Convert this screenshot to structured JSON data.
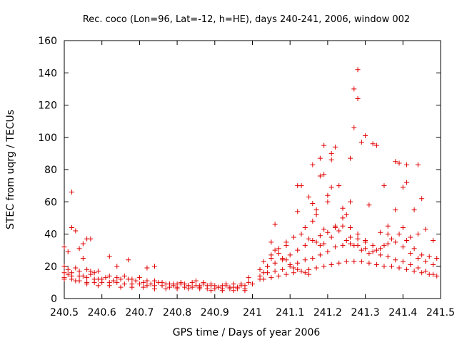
{
  "chart_data": {
    "type": "scatter",
    "title": "Rec. coco (Lon=96, Lat=-12, h=HE), days 240-241, 2006, window 002",
    "xlabel": "GPS time / Days of year 2006",
    "ylabel": "STEC from uqrg / TECUs",
    "xlim": [
      240.5,
      241.5
    ],
    "ylim": [
      0,
      160
    ],
    "xticks": [
      240.5,
      240.6,
      240.7,
      240.8,
      240.9,
      241,
      241.1,
      241.2,
      241.3,
      241.4,
      241.5
    ],
    "xtick_labels": [
      "240.5",
      "240.6",
      "240.7",
      "240.8",
      "240.9",
      "241",
      "241.1",
      "241.2",
      "241.3",
      "241.4",
      "241.5"
    ],
    "yticks": [
      0,
      20,
      40,
      60,
      80,
      100,
      120,
      140,
      160
    ],
    "ytick_labels": [
      "0",
      "20",
      "40",
      "60",
      "80",
      "100",
      "120",
      "140",
      "160"
    ],
    "grid": false,
    "marker": "plus",
    "color": "#e00000",
    "series": [
      {
        "points": [
          [
            240.5,
            32
          ],
          [
            240.51,
            29
          ],
          [
            240.52,
            44
          ],
          [
            240.52,
            66
          ],
          [
            240.53,
            42
          ],
          [
            240.54,
            31
          ],
          [
            240.55,
            34
          ],
          [
            240.56,
            37
          ],
          [
            240.57,
            37
          ],
          [
            240.62,
            26
          ],
          [
            240.64,
            20
          ],
          [
            240.67,
            24
          ],
          [
            240.72,
            19
          ],
          [
            240.74,
            20
          ],
          [
            240.5,
            20
          ],
          [
            240.51,
            18
          ],
          [
            240.52,
            16
          ],
          [
            240.53,
            19
          ],
          [
            240.54,
            17
          ],
          [
            240.55,
            25
          ],
          [
            240.56,
            18
          ],
          [
            240.57,
            17
          ],
          [
            240.58,
            16
          ],
          [
            240.59,
            17
          ],
          [
            240.5,
            16
          ],
          [
            240.52,
            14
          ],
          [
            240.54,
            14
          ],
          [
            240.56,
            13
          ],
          [
            240.58,
            12
          ],
          [
            240.6,
            12
          ],
          [
            240.62,
            14
          ],
          [
            240.64,
            13
          ],
          [
            240.66,
            14
          ],
          [
            240.68,
            12
          ],
          [
            240.7,
            13
          ],
          [
            240.72,
            11
          ],
          [
            240.74,
            11
          ],
          [
            240.76,
            10
          ],
          [
            240.78,
            9
          ],
          [
            240.8,
            9
          ],
          [
            240.82,
            9
          ],
          [
            240.84,
            10
          ],
          [
            240.86,
            8
          ],
          [
            240.88,
            8
          ],
          [
            240.9,
            8
          ],
          [
            240.92,
            8
          ],
          [
            240.94,
            7
          ],
          [
            240.96,
            7
          ],
          [
            240.98,
            8
          ],
          [
            240.5,
            13
          ],
          [
            240.52,
            12
          ],
          [
            240.54,
            11
          ],
          [
            240.56,
            10
          ],
          [
            240.58,
            10
          ],
          [
            240.6,
            10
          ],
          [
            240.62,
            10
          ],
          [
            240.64,
            10
          ],
          [
            240.66,
            9
          ],
          [
            240.68,
            9
          ],
          [
            240.7,
            9
          ],
          [
            240.72,
            8
          ],
          [
            240.74,
            8
          ],
          [
            240.76,
            8
          ],
          [
            240.78,
            7
          ],
          [
            240.8,
            7
          ],
          [
            240.82,
            7
          ],
          [
            240.84,
            7
          ],
          [
            240.86,
            7
          ],
          [
            240.88,
            6
          ],
          [
            240.9,
            6
          ],
          [
            240.92,
            6
          ],
          [
            240.94,
            6
          ],
          [
            240.96,
            6
          ],
          [
            240.98,
            6
          ],
          [
            240.5,
            12
          ],
          [
            240.53,
            11
          ],
          [
            240.56,
            9
          ],
          [
            240.59,
            8
          ],
          [
            240.62,
            8
          ],
          [
            240.65,
            7
          ],
          [
            240.68,
            7
          ],
          [
            240.71,
            7
          ],
          [
            240.74,
            6
          ],
          [
            240.77,
            6
          ],
          [
            240.8,
            6
          ],
          [
            240.83,
            6
          ],
          [
            240.86,
            6
          ],
          [
            240.89,
            5
          ],
          [
            240.92,
            5
          ],
          [
            240.95,
            5
          ],
          [
            240.98,
            5
          ],
          [
            240.51,
            15
          ],
          [
            240.55,
            14
          ],
          [
            240.59,
            12
          ],
          [
            240.63,
            11
          ],
          [
            240.67,
            12
          ],
          [
            240.71,
            10
          ],
          [
            240.75,
            10
          ],
          [
            240.79,
            8
          ],
          [
            240.83,
            8
          ],
          [
            240.87,
            9
          ],
          [
            240.91,
            7
          ],
          [
            240.95,
            9
          ],
          [
            240.99,
            10
          ],
          [
            240.57,
            15
          ],
          [
            240.61,
            13
          ],
          [
            240.65,
            12
          ],
          [
            240.69,
            11
          ],
          [
            240.73,
            9
          ],
          [
            240.77,
            9
          ],
          [
            240.81,
            9
          ],
          [
            240.85,
            8
          ],
          [
            240.89,
            8
          ],
          [
            240.93,
            9
          ],
          [
            240.97,
            8
          ],
          [
            241.0,
            9
          ],
          [
            240.79,
            9
          ],
          [
            240.81,
            10
          ],
          [
            240.83,
            8
          ],
          [
            240.85,
            11
          ],
          [
            240.87,
            10
          ],
          [
            240.89,
            9
          ],
          [
            240.91,
            7
          ],
          [
            240.93,
            8
          ],
          [
            240.95,
            7
          ],
          [
            240.97,
            9
          ],
          [
            240.99,
            13
          ],
          [
            241.02,
            12
          ],
          [
            241.03,
            16
          ],
          [
            241.04,
            20
          ],
          [
            241.05,
            25
          ],
          [
            241.06,
            30
          ],
          [
            241.07,
            28
          ],
          [
            241.08,
            25
          ],
          [
            241.09,
            24
          ],
          [
            241.1,
            21
          ],
          [
            241.11,
            19
          ],
          [
            241.12,
            18
          ],
          [
            241.13,
            17
          ],
          [
            241.14,
            16
          ],
          [
            241.15,
            15
          ],
          [
            241.02,
            14
          ],
          [
            241.04,
            16
          ],
          [
            241.06,
            17
          ],
          [
            241.08,
            18
          ],
          [
            241.1,
            20
          ],
          [
            241.12,
            22
          ],
          [
            241.14,
            24
          ],
          [
            241.16,
            25
          ],
          [
            241.18,
            27
          ],
          [
            241.2,
            29
          ],
          [
            241.22,
            32
          ],
          [
            241.24,
            33
          ],
          [
            241.26,
            34
          ],
          [
            241.28,
            33
          ],
          [
            241.3,
            31
          ],
          [
            241.32,
            29
          ],
          [
            241.34,
            27
          ],
          [
            241.36,
            26
          ],
          [
            241.38,
            24
          ],
          [
            241.4,
            23
          ],
          [
            241.42,
            21
          ],
          [
            241.44,
            19
          ],
          [
            241.46,
            17
          ],
          [
            241.48,
            15
          ],
          [
            241.02,
            18
          ],
          [
            241.04,
            20
          ],
          [
            241.06,
            22
          ],
          [
            241.08,
            24
          ],
          [
            241.1,
            27
          ],
          [
            241.12,
            30
          ],
          [
            241.14,
            33
          ],
          [
            241.16,
            36
          ],
          [
            241.18,
            39
          ],
          [
            241.2,
            41
          ],
          [
            241.22,
            44
          ],
          [
            241.24,
            45
          ],
          [
            241.26,
            44
          ],
          [
            241.28,
            40
          ],
          [
            241.3,
            36
          ],
          [
            241.32,
            33
          ],
          [
            241.34,
            31
          ],
          [
            241.36,
            34
          ],
          [
            241.38,
            35
          ],
          [
            241.4,
            32
          ],
          [
            241.42,
            28
          ],
          [
            241.44,
            25
          ],
          [
            241.46,
            23
          ],
          [
            241.48,
            21
          ],
          [
            241.03,
            23
          ],
          [
            241.05,
            27
          ],
          [
            241.07,
            31
          ],
          [
            241.09,
            35
          ],
          [
            241.11,
            38
          ],
          [
            241.13,
            40
          ],
          [
            241.15,
            37
          ],
          [
            241.17,
            35
          ],
          [
            241.19,
            34
          ],
          [
            241.21,
            38
          ],
          [
            241.23,
            42
          ],
          [
            241.25,
            36
          ],
          [
            241.27,
            33
          ],
          [
            241.29,
            30
          ],
          [
            241.31,
            28
          ],
          [
            241.33,
            30
          ],
          [
            241.35,
            33
          ],
          [
            241.37,
            37
          ],
          [
            241.39,
            40
          ],
          [
            241.41,
            36
          ],
          [
            241.43,
            31
          ],
          [
            241.45,
            27
          ],
          [
            241.47,
            26
          ],
          [
            241.49,
            25
          ],
          [
            241.03,
            12
          ],
          [
            241.05,
            13
          ],
          [
            241.07,
            14
          ],
          [
            241.09,
            15
          ],
          [
            241.11,
            16
          ],
          [
            241.13,
            17
          ],
          [
            241.15,
            18
          ],
          [
            241.17,
            19
          ],
          [
            241.19,
            20
          ],
          [
            241.21,
            21
          ],
          [
            241.23,
            22
          ],
          [
            241.25,
            23
          ],
          [
            241.27,
            23
          ],
          [
            241.29,
            23
          ],
          [
            241.31,
            22
          ],
          [
            241.33,
            21
          ],
          [
            241.35,
            20
          ],
          [
            241.37,
            20
          ],
          [
            241.39,
            19
          ],
          [
            241.41,
            18
          ],
          [
            241.43,
            17
          ],
          [
            241.45,
            16
          ],
          [
            241.47,
            15
          ],
          [
            241.49,
            14
          ],
          [
            241.05,
            35
          ],
          [
            241.06,
            46
          ],
          [
            241.09,
            33
          ],
          [
            241.11,
            38
          ],
          [
            241.12,
            54
          ],
          [
            241.12,
            70
          ],
          [
            241.13,
            70
          ],
          [
            241.14,
            44
          ],
          [
            241.15,
            63
          ],
          [
            241.16,
            83
          ],
          [
            241.16,
            59
          ],
          [
            241.17,
            55
          ],
          [
            241.17,
            52
          ],
          [
            241.18,
            87
          ],
          [
            241.18,
            76
          ],
          [
            241.19,
            95
          ],
          [
            241.19,
            77
          ],
          [
            241.2,
            64
          ],
          [
            241.21,
            90
          ],
          [
            241.21,
            86
          ],
          [
            241.21,
            69
          ],
          [
            241.22,
            94
          ],
          [
            241.23,
            70
          ],
          [
            241.24,
            56
          ],
          [
            241.25,
            52
          ],
          [
            241.26,
            87
          ],
          [
            241.26,
            60
          ],
          [
            241.27,
            106
          ],
          [
            241.27,
            130
          ],
          [
            241.28,
            124
          ],
          [
            241.28,
            142
          ],
          [
            241.29,
            97
          ],
          [
            241.3,
            101
          ],
          [
            241.31,
            58
          ],
          [
            241.32,
            96
          ],
          [
            241.33,
            95
          ],
          [
            241.34,
            41
          ],
          [
            241.35,
            70
          ],
          [
            241.36,
            45
          ],
          [
            241.38,
            55
          ],
          [
            241.38,
            85
          ],
          [
            241.39,
            84
          ],
          [
            241.4,
            69
          ],
          [
            241.41,
            83
          ],
          [
            241.41,
            72
          ],
          [
            241.43,
            55
          ],
          [
            241.44,
            83
          ],
          [
            241.45,
            62
          ],
          [
            241.46,
            43
          ],
          [
            241.48,
            36
          ],
          [
            241.16,
            48
          ],
          [
            241.18,
            33
          ],
          [
            241.19,
            43
          ],
          [
            241.2,
            60
          ],
          [
            241.22,
            45
          ],
          [
            241.24,
            50
          ],
          [
            241.26,
            38
          ],
          [
            241.28,
            37
          ],
          [
            241.3,
            35
          ],
          [
            241.36,
            40
          ],
          [
            241.4,
            44
          ],
          [
            241.42,
            38
          ],
          [
            241.44,
            40
          ]
        ]
      }
    ]
  }
}
